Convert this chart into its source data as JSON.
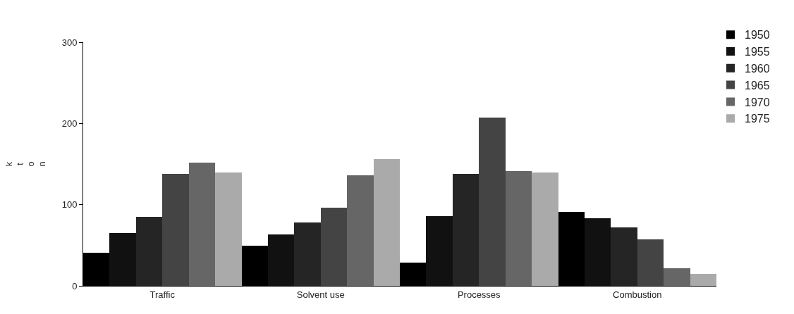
{
  "chart_data": {
    "type": "bar",
    "ylabel": "kton",
    "categories": [
      "Traffic",
      "Solvent use",
      "Processes",
      "Combustion"
    ],
    "series": [
      {
        "name": "1950",
        "color": "#000000",
        "values": [
          41,
          49,
          29,
          91
        ]
      },
      {
        "name": "1955",
        "color": "#111111",
        "values": [
          65,
          63,
          86,
          83
        ]
      },
      {
        "name": "1960",
        "color": "#252525",
        "values": [
          85,
          78,
          138,
          72
        ]
      },
      {
        "name": "1965",
        "color": "#444444",
        "values": [
          138,
          96,
          207,
          57
        ]
      },
      {
        "name": "1970",
        "color": "#666666",
        "values": [
          152,
          136,
          141,
          22
        ]
      },
      {
        "name": "1975",
        "color": "#aaaaaa",
        "values": [
          140,
          156,
          140,
          15
        ]
      }
    ],
    "ylim": [
      0,
      300
    ],
    "yticks": [
      0,
      100,
      200,
      300
    ],
    "legend": "top right"
  }
}
